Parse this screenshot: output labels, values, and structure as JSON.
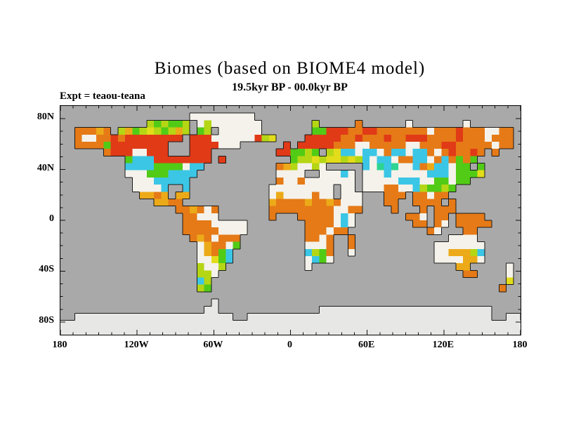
{
  "title": "Biomes (based on BIOME4 model)",
  "subtitle": "19.5kyr BP - 00.0kyr BP",
  "experiment_label": "Expt = teaou-teana",
  "chart_data": {
    "type": "heatmap",
    "title": "Biomes (based on BIOME4 model)",
    "subtitle": "19.5kyr BP - 00.0kyr BP",
    "annotation": "Expt = teaou-teana",
    "projection": "equirectangular world map",
    "lon_range": [
      -180,
      180
    ],
    "lat_range": [
      -90,
      90
    ],
    "x_tick_labels": [
      "180",
      "120W",
      "60W",
      "0",
      "60E",
      "120E",
      "180"
    ],
    "x_tick_lons": [
      -180,
      -120,
      -60,
      0,
      60,
      120,
      180
    ],
    "y_tick_labels": [
      "80N",
      "40N",
      "0",
      "40S",
      "80S"
    ],
    "y_tick_lats": [
      80,
      40,
      0,
      -40,
      -80
    ],
    "minor_tick_deg": 10,
    "grid_cols": 64,
    "grid_rows": 32,
    "cell_deg": 5.625,
    "ocean_color": "#a9a9a9",
    "coastline_color": "#1a1a1a",
    "frame_color": "#000000",
    "palette": {
      "W": "#f4f2ea",
      "I": "#e7e7e5",
      "R": "#e03a17",
      "O": "#e57a17",
      "A": "#ecaa18",
      "Y": "#e2dc1a",
      "L": "#b5d614",
      "G": "#52cb16",
      "T": "#2fd492",
      "C": "#3bc6e6"
    },
    "grid": [
      [
        "........",
        "........",
        "........",
        "........",
        "........",
        "........",
        "........",
        "........"
      ],
      [
        "........",
        "........",
        "..WWWWWW",
        "WWW.....",
        "........",
        "........",
        "........",
        "........"
      ],
      [
        "........",
        "....LGLG",
        "GL.WLWWW",
        "WWWW....",
        "...L....",
        ".O......",
        "W.......",
        "W......."
      ],
      [
        "..OOOAO.",
        "LAGLYLGL",
        "AL.GL.WW",
        "WWWW....",
        "...GGRRR",
        "OORROOOO",
        "OOOWOOOR",
        "OOOWWOO."
      ],
      [
        "..OWWOOR",
        "ORRRRRRR",
        "R.RRRWWW",
        "WWWRLY..",
        "..RRRRRO",
        "OROOOROO",
        "RRROOOOR",
        "OOOWOOO."
      ],
      [
        "..OOOOGR",
        "RRRRRRR.",
        "..RRRRWW",
        "W......R",
        ".RRRRROO",
        "OWWOOOOO",
        "WWOOORRO",
        "OOOOWOO."
      ],
      [
        "......OR",
        "RRWWRRR.",
        "..RRR...",
        "......RR",
        "GGLG.LYC",
        "CWCCWOCC",
        "WCCOWORO",
        "ORO.O..."
      ],
      [
        "........",
        ".GCCCRRR",
        "RRRRR.R.",
        "........",
        "GLLYLYYL",
        "YLCWCCWO",
        "OCCWOCOG",
        "OG......"
      ],
      [
        "........",
        ".CCCCGGG",
        "GWCC....",
        "......OA",
        "LWWLW...",
        "..CWTCTW",
        "WCOACCWG",
        "G.G....."
      ],
      [
        "........",
        ".WWWGGGC",
        "CCC.....",
        "......WW",
        "WW..WWWC",
        "W.WWWCWW",
        "WWWCCCWG",
        "GGY....."
      ],
      [
        "........",
        "..WWWCCC",
        "CC......",
        "......OW",
        "WOWWWWWW",
        "W.WWWWWC",
        "CCWWGGWG",
        "G......."
      ],
      [
        "........",
        "..WWWWC.",
        ".C......",
        ".....WWW",
        "WWWWWW.W",
        "W.WWWOOW",
        "WCLGGLG.",
        "........"
      ],
      [
        "........",
        "...AAOA.",
        "AA......",
        ".....WAW",
        "WWWOWW.W",
        "WW...OOO",
        ".OOWOO..",
        "........"
      ],
      [
        "........",
        ".....AAO",
        "O.......",
        ".....AOO",
        "OOAOOAOW",
        "WW...OO.",
        ".OOOO.O.",
        "........"
      ],
      [
        "........",
        "........",
        "OOAOWO..",
        ".....OOO",
        "OOOOOOWW",
        "OO....O.",
        "..O.OOO.",
        "........"
      ],
      [
        "........",
        "........",
        ".OOWWW..",
        ".....O..",
        ".OOOOOWC",
        "W.......",
        "OOW.OO.O",
        "OOO....."
      ],
      [
        "........",
        "........",
        ".OOOOWWW",
        "WW......",
        "..OOOOWC",
        "W.......",
        ".OO.OW.O",
        "OOOO...."
      ],
      [
        "........",
        "........",
        ".OOOOOWW",
        "WW......",
        "..OOOWOO",
        "........",
        "...OW...",
        "OO......"
      ],
      [
        "........",
        "........",
        "..OAOWOO",
        "O.......",
        "..OOWO..",
        "O.......",
        "......WW",
        "WW......"
      ],
      [
        "........",
        "........",
        "...WAOOW",
        "G.......",
        "..WWWO..",
        "O.......",
        "....WWWW",
        "WWW....."
      ],
      [
        "........",
        "........",
        "...WAOGC",
        "........",
        "..CLGO..",
        "W.......",
        "....WWAA",
        "ALC....."
      ],
      [
        "........",
        "........",
        "...WWYGC",
        "........",
        "..WCGW..",
        "........",
        "....WWWW",
        "AAW....."
      ],
      [
        "........",
        "........",
        "...LWWL.",
        "........",
        "..W.....",
        "........",
        ".......A",
        "A.....W."
      ],
      [
        "........",
        "........",
        "...LLW..",
        "........",
        "........",
        "........",
        "........",
        "OO....W."
      ],
      [
        "........",
        "........",
        "...CL...",
        "........",
        "........",
        "........",
        "........",
        "......Y."
      ],
      [
        "........",
        "........",
        "...LG...",
        "........",
        "........",
        "........",
        "........",
        ".....O.."
      ],
      [
        "........",
        "........",
        "........",
        "........",
        "........",
        "........",
        "........",
        "........"
      ],
      [
        "........",
        "........",
        ".....I..",
        "........",
        "........",
        "........",
        "........",
        "........"
      ],
      [
        "........",
        "........",
        "....II..",
        "........",
        "....IIII",
        "IIIIIIII",
        "IIIIIIII",
        "IIII...."
      ],
      [
        "..IIIIII",
        "IIIIIIII",
        "IIIIIIII",
        "..IIIIII",
        "IIIIIIII",
        "IIIIIIII",
        "IIIIIIII",
        "IIII..II"
      ],
      [
        "IIIIIIII",
        "IIIIIIII",
        "IIIIIIII",
        "IIIIIIII",
        "IIIIIIII",
        "IIIIIIII",
        "IIIIIIII",
        "IIIIIIII"
      ],
      [
        "IIIIIIII",
        "IIIIIIII",
        "IIIIIIII",
        "IIIIIIII",
        "IIIIIIII",
        "IIIIIIII",
        "IIIIIIII",
        "IIIIIIII"
      ]
    ]
  }
}
